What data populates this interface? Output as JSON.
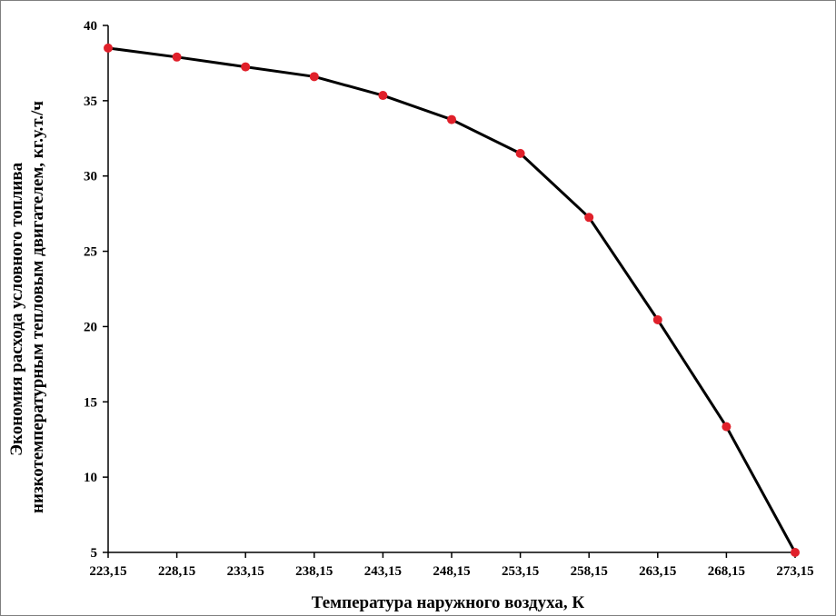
{
  "chart_data": {
    "type": "line",
    "xlabel": "Температура наружного воздуха, К",
    "ylabel": [
      "Экономия расхода условного топлива",
      "низкотемпературным тепловым двигателем, кг.у.т./ч"
    ],
    "x_tick_labels": [
      "223,15",
      "228,15",
      "233,15",
      "238,15",
      "243,15",
      "248,15",
      "253,15",
      "258,15",
      "263,15",
      "268,15",
      "273,15"
    ],
    "y_ticks": [
      5,
      10,
      15,
      20,
      25,
      30,
      35,
      40
    ],
    "ylim": [
      5,
      40
    ],
    "x": [
      223.15,
      228.15,
      233.15,
      238.15,
      243.15,
      248.15,
      253.15,
      258.15,
      263.15,
      268.15,
      273.15
    ],
    "series": [
      {
        "values": [
          38.5,
          37.9,
          37.25,
          36.6,
          35.35,
          33.75,
          31.5,
          27.25,
          20.45,
          13.35,
          5.0
        ]
      }
    ],
    "line_color": "#000000",
    "marker_color": "#e0202a",
    "grid": false,
    "legend": "none"
  }
}
